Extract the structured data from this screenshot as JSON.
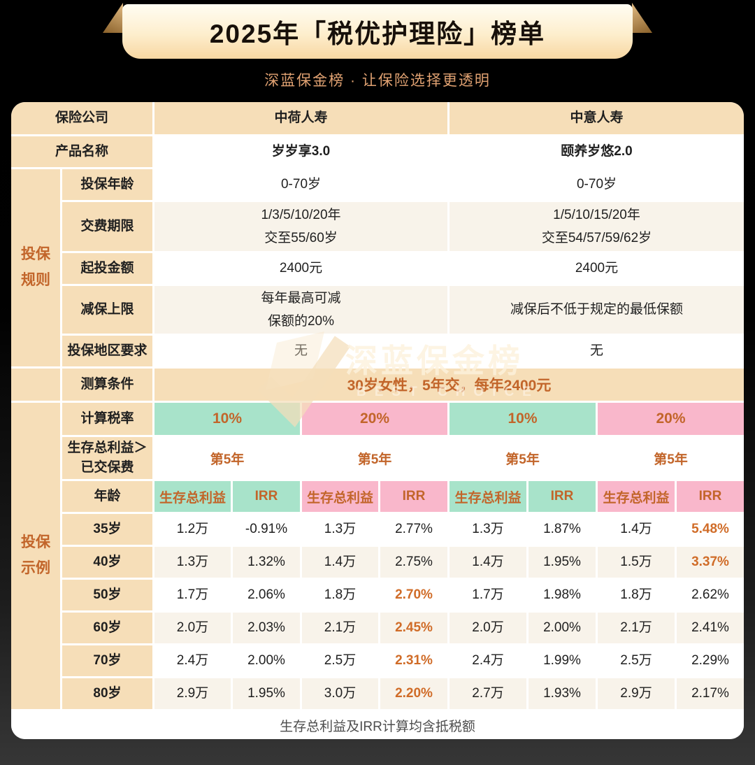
{
  "banner": {
    "title": "2025年「税优护理险」榜单",
    "subtitle": "深蓝保金榜 · 让保险选择更透明"
  },
  "watermark": {
    "text": "深蓝保金榜",
    "subtext": "BEST CHOICE"
  },
  "colors": {
    "tan_cell": "#f6deb8",
    "cream_row": "#f8f3ea",
    "green_cell": "#a8e3ca",
    "pink_cell": "#f9b7cb",
    "accent_orange": "#c2652a",
    "highlight_orange": "#d06c28",
    "banner_top": "#fffdf3",
    "banner_bottom": "#f8d7a2",
    "background_top": "#000000",
    "background_bottom": "#363636"
  },
  "table": {
    "company_row": {
      "label": "保险公司",
      "values": [
        "中荷人寿",
        "中意人寿"
      ]
    },
    "product_row": {
      "label": "产品名称",
      "values": [
        "岁岁享3.0",
        "颐养岁悠2.0"
      ]
    },
    "rules": {
      "sidebar_label": "投保\n规则",
      "rows": [
        {
          "label": "投保年龄",
          "values": [
            "0-70岁",
            "0-70岁"
          ]
        },
        {
          "label": "交费期限",
          "values": [
            "1/3/5/10/20年\n交至55/60岁",
            "1/5/10/15/20年\n交至54/57/59/62岁"
          ]
        },
        {
          "label": "起投金额",
          "values": [
            "2400元",
            "2400元"
          ]
        },
        {
          "label": "减保上限",
          "values": [
            "每年最高可减\n保额的20%",
            "减保后不低于规定的最低保额"
          ]
        },
        {
          "label": "投保地区要求",
          "values": [
            "无",
            "无"
          ]
        }
      ]
    },
    "calc_condition": {
      "label": "测算条件",
      "value": "30岁女性，5年交，每年2400元"
    },
    "examples": {
      "sidebar_label": "投保\n示例",
      "tax_rate_row": {
        "label": "计算税率",
        "values": [
          "10%",
          "20%",
          "10%",
          "20%"
        ]
      },
      "breakeven_row": {
        "label": "生存总利益＞\n已交保费",
        "values": [
          "第5年",
          "第5年",
          "第5年",
          "第5年"
        ]
      },
      "age_header_row": {
        "label": "年龄",
        "columns": [
          "生存总利益",
          "IRR",
          "生存总利益",
          "IRR",
          "生存总利益",
          "IRR",
          "生存总利益",
          "IRR"
        ]
      },
      "rows": [
        {
          "age": "35岁",
          "values": [
            "1.2万",
            "-0.91%",
            "1.3万",
            "2.77%",
            "1.3万",
            "1.87%",
            "1.4万",
            "5.48%"
          ],
          "highlight_index": 7
        },
        {
          "age": "40岁",
          "values": [
            "1.3万",
            "1.32%",
            "1.4万",
            "2.75%",
            "1.4万",
            "1.95%",
            "1.5万",
            "3.37%"
          ],
          "highlight_index": 7
        },
        {
          "age": "50岁",
          "values": [
            "1.7万",
            "2.06%",
            "1.8万",
            "2.70%",
            "1.7万",
            "1.98%",
            "1.8万",
            "2.62%"
          ],
          "highlight_index": 3
        },
        {
          "age": "60岁",
          "values": [
            "2.0万",
            "2.03%",
            "2.1万",
            "2.45%",
            "2.0万",
            "2.00%",
            "2.1万",
            "2.41%"
          ],
          "highlight_index": 3
        },
        {
          "age": "70岁",
          "values": [
            "2.4万",
            "2.00%",
            "2.5万",
            "2.31%",
            "2.4万",
            "1.99%",
            "2.5万",
            "2.29%"
          ],
          "highlight_index": 3
        },
        {
          "age": "80岁",
          "values": [
            "2.9万",
            "1.95%",
            "3.0万",
            "2.20%",
            "2.7万",
            "1.93%",
            "2.9万",
            "2.17%"
          ],
          "highlight_index": 3
        }
      ]
    },
    "footer_note": "生存总利益及IRR计算均含抵税额"
  }
}
